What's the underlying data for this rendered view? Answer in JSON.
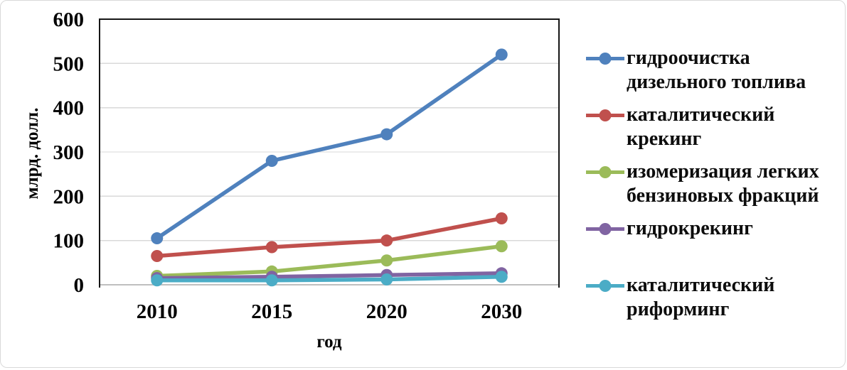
{
  "figure": {
    "background": "#ffffff",
    "border_color": "#d9d9d9"
  },
  "chart_data": {
    "type": "line",
    "title": "",
    "ylabel": "млрд. долл.",
    "xlabel": "год",
    "categories": [
      "2010",
      "2015",
      "2020",
      "2030"
    ],
    "ylim": [
      0,
      600
    ],
    "yticks": [
      0,
      100,
      200,
      300,
      400,
      500,
      600
    ],
    "grid": "horizontal",
    "gridline_color": "#d9d9d9",
    "baseline_color": "#bfbfbf",
    "axis_color": "#161616",
    "tick_label_color": "#000000",
    "legend_position": "right",
    "marker": "circle",
    "series": [
      {
        "name": "гидроочистка дизельного топлива",
        "label_lines": [
          "гидроочистка",
          "дизельного топлива"
        ],
        "color": "#4F81BD",
        "values": [
          105,
          280,
          340,
          520
        ]
      },
      {
        "name": "каталитический крекинг",
        "label_lines": [
          "каталитический",
          "крекинг"
        ],
        "color": "#C0504D",
        "values": [
          65,
          85,
          100,
          150
        ]
      },
      {
        "name": "изомеризация легких бензиновых фракций",
        "label_lines": [
          "изомеризация легких",
          "бензиновых фракций"
        ],
        "color": "#9BBB59",
        "values": [
          20,
          30,
          55,
          87
        ]
      },
      {
        "name": "гидрокрекинг",
        "label_lines": [
          "гидрокрекинг"
        ],
        "color": "#8064A2",
        "values": [
          15,
          18,
          22,
          26
        ]
      },
      {
        "name": "каталитический риформинг",
        "label_lines": [
          "каталитический",
          "риформинг"
        ],
        "color": "#4BACC6",
        "values": [
          10,
          10,
          12,
          18
        ]
      }
    ]
  }
}
